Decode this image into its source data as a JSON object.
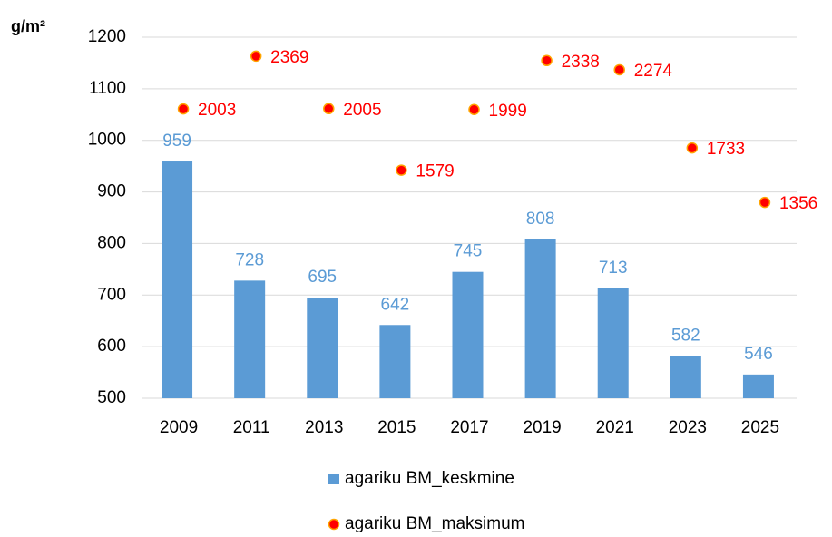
{
  "chart_data": {
    "type": "bar",
    "y_label": "g/m²",
    "categories": [
      "2009",
      "2011",
      "2013",
      "2015",
      "2017",
      "2019",
      "2021",
      "2023",
      "2025"
    ],
    "series": [
      {
        "name": "agariku BM_keskmine",
        "type": "bar",
        "color": "#5b9bd5",
        "values": [
          959,
          728,
          695,
          642,
          745,
          808,
          713,
          582,
          546
        ]
      },
      {
        "name": "agariku BM_maksimum",
        "type": "scatter",
        "axis": "y2",
        "color": "#ff0000",
        "values": [
          2003,
          2369,
          2005,
          1579,
          1999,
          2338,
          2274,
          1733,
          1356
        ]
      }
    ],
    "ylim": [
      500,
      1200
    ],
    "yticks": [
      500,
      600,
      700,
      800,
      900,
      1000,
      1100,
      1200
    ],
    "y2lim": [
      0,
      2500
    ],
    "grid": true,
    "legend": "bottom"
  }
}
